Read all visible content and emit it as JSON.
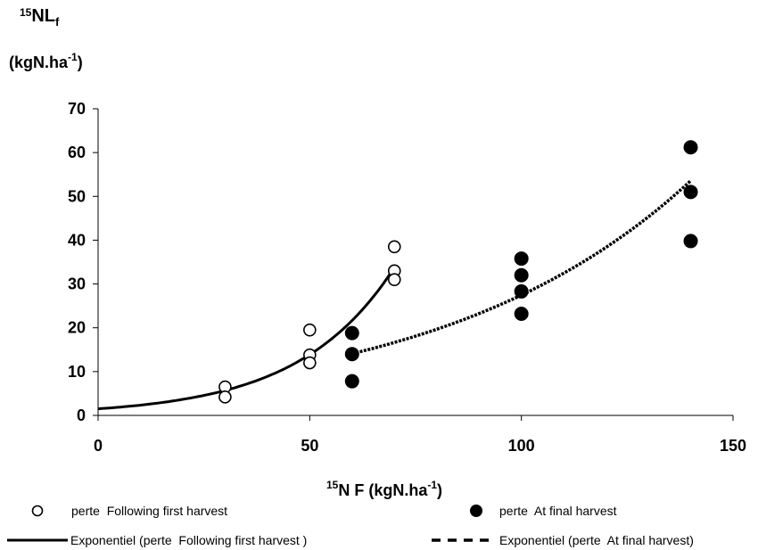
{
  "chart_data": {
    "type": "scatter",
    "title": "",
    "ylabel_sup": "15",
    "ylabel_main": "NL",
    "ylabel_sub": "f",
    "ylabel_unit_pre": "(kgN.ha",
    "ylabel_unit_sup": "-1",
    "ylabel_unit_post": ")",
    "xlabel_sup": "15",
    "xlabel_main": "N F (kgN.ha",
    "xlabel_unit_sup": "-1",
    "xlabel_unit_post": ")",
    "xlim": [
      0,
      150
    ],
    "ylim": [
      0,
      70
    ],
    "xticks": [
      0,
      50,
      100,
      150
    ],
    "yticks": [
      0,
      10,
      20,
      30,
      40,
      50,
      60,
      70
    ],
    "xtick_labels": [
      "0",
      "50",
      "100",
      "150"
    ],
    "ytick_labels": [
      "0",
      "10",
      "20",
      "30",
      "40",
      "50",
      "60",
      "70"
    ],
    "grid": false,
    "legend_position": "bottom",
    "series": [
      {
        "name": "perte  Following first harvest",
        "marker": "open-circle",
        "color": "#000000",
        "points": [
          [
            30,
            6.5
          ],
          [
            30,
            4.2
          ],
          [
            50,
            19.5
          ],
          [
            50,
            13.8
          ],
          [
            50,
            12.0
          ],
          [
            70,
            38.5
          ],
          [
            70,
            33.0
          ],
          [
            70,
            31.0
          ]
        ]
      },
      {
        "name": "perte  At final harvest",
        "marker": "filled-circle",
        "color": "#000000",
        "points": [
          [
            60,
            18.8
          ],
          [
            60,
            14.0
          ],
          [
            60,
            7.8
          ],
          [
            100,
            35.8
          ],
          [
            100,
            32.0
          ],
          [
            100,
            28.3
          ],
          [
            100,
            23.2
          ],
          [
            140,
            61.2
          ],
          [
            140,
            51.0
          ],
          [
            140,
            39.8
          ]
        ]
      }
    ],
    "trendlines": [
      {
        "name": "Exponentiel (perte  Following first harvest )",
        "style": "solid",
        "color": "#000000",
        "a": 1.5,
        "b": 0.0445,
        "x_range": [
          0,
          70
        ]
      },
      {
        "name": "Exponentiel (perte  At final harvest)",
        "style": "dashed",
        "color": "#000000",
        "a": 5.17,
        "b": 0.0167,
        "x_range": [
          60,
          140
        ]
      }
    ]
  }
}
